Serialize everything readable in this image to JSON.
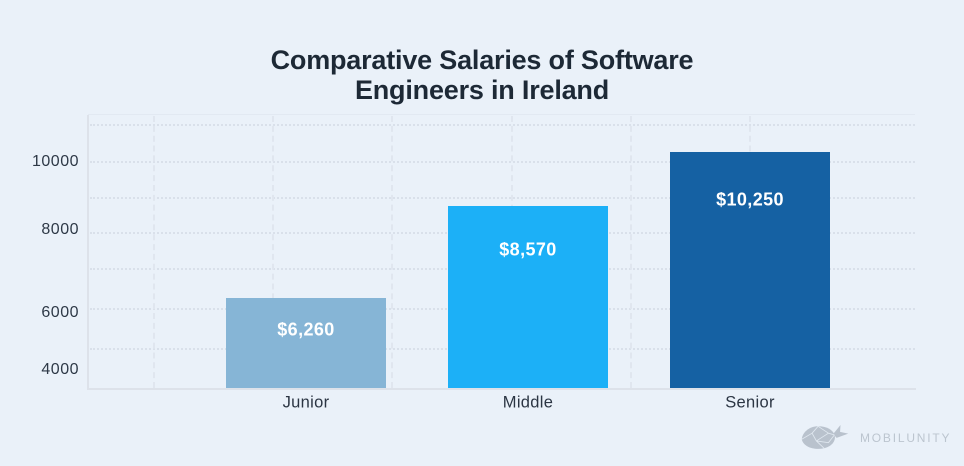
{
  "title": {
    "line1": "Comparative Salaries of Software",
    "line2": "Engineers in Ireland"
  },
  "chart_data": {
    "type": "bar",
    "title": "Comparative Salaries of Software Engineers in Ireland",
    "categories": [
      "Junior",
      "Middle",
      "Senior"
    ],
    "values": [
      6260,
      8570,
      10250
    ],
    "value_labels": [
      "$6,260",
      "$8,570",
      "$10,250"
    ],
    "bar_colors": [
      "#86b5d6",
      "#1cb0f7",
      "#1561a3"
    ],
    "yticks": [
      "10000",
      "8000",
      "6000",
      "4000"
    ],
    "ylim": [
      3800,
      11200
    ],
    "grid": "dotted",
    "legend": "none",
    "xlabel": "",
    "ylabel": ""
  },
  "brand": {
    "name": "MOBILUNITY",
    "icon": "whale-icon"
  },
  "colors": {
    "background": "#eaf1f9",
    "grid": "#d9e0ea",
    "axis": "#dde2ea",
    "title_text": "#1d2936",
    "label_text": "#2b3543",
    "value_text": "#ffffff",
    "brand_gray": "#bcc5cf"
  }
}
